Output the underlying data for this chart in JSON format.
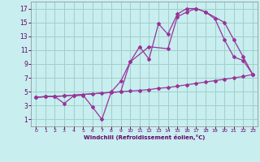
{
  "background_color": "#c8eef0",
  "grid_color": "#a0d0c8",
  "line_color": "#993399",
  "xlabel": "Windchill (Refroidissement éolien,°C)",
  "xlabel_color": "#660066",
  "tick_color": "#660066",
  "xlim": [
    -0.5,
    23.5
  ],
  "ylim": [
    0,
    18
  ],
  "xticks": [
    0,
    1,
    2,
    3,
    4,
    5,
    6,
    7,
    8,
    9,
    10,
    11,
    12,
    13,
    14,
    15,
    16,
    17,
    18,
    19,
    20,
    21,
    22,
    23
  ],
  "yticks": [
    1,
    3,
    5,
    7,
    9,
    11,
    13,
    15,
    17
  ],
  "line1_x": [
    0,
    1,
    2,
    3,
    4,
    5,
    6,
    7,
    8,
    9,
    10,
    11,
    12,
    13,
    14,
    15,
    16,
    17,
    18,
    19,
    20,
    21,
    22,
    23
  ],
  "line1_y": [
    4.2,
    4.3,
    4.3,
    4.4,
    4.5,
    4.6,
    4.7,
    4.8,
    4.9,
    5.0,
    5.1,
    5.2,
    5.3,
    5.5,
    5.6,
    5.8,
    6.0,
    6.2,
    6.4,
    6.6,
    6.8,
    7.0,
    7.2,
    7.5
  ],
  "line2_x": [
    0,
    1,
    2,
    3,
    4,
    5,
    6,
    7,
    8,
    9,
    10,
    11,
    12,
    13,
    14,
    15,
    16,
    17,
    18,
    19,
    20,
    21,
    22,
    23
  ],
  "line2_y": [
    4.2,
    4.3,
    4.3,
    3.3,
    4.4,
    4.5,
    2.8,
    1.0,
    5.0,
    6.5,
    9.3,
    11.5,
    9.7,
    14.8,
    13.3,
    16.2,
    17.0,
    17.0,
    16.5,
    15.5,
    12.5,
    10.0,
    9.5,
    7.5
  ],
  "line3_x": [
    0,
    3,
    9,
    10,
    12,
    14,
    15,
    16,
    17,
    18,
    20,
    21,
    22,
    23
  ],
  "line3_y": [
    4.2,
    4.4,
    5.0,
    9.3,
    11.5,
    11.2,
    15.8,
    16.5,
    17.0,
    16.5,
    15.0,
    12.5,
    10.0,
    7.5
  ]
}
